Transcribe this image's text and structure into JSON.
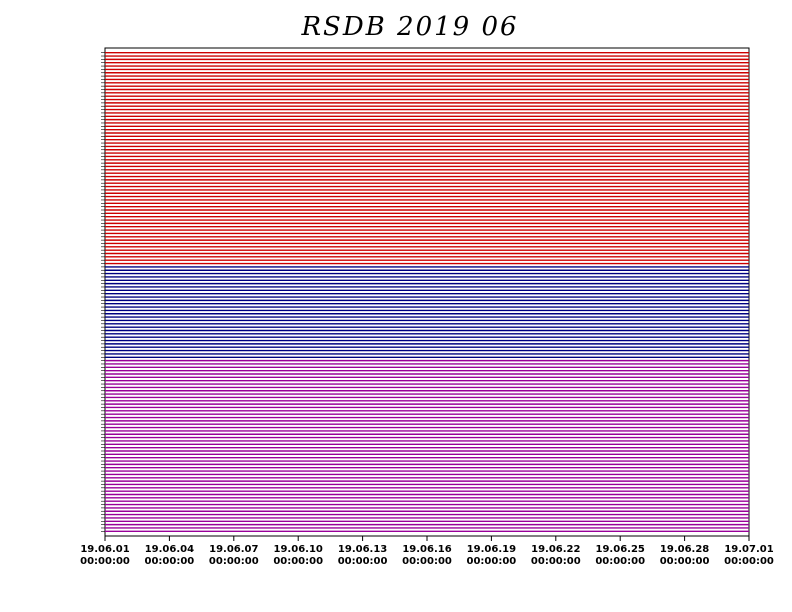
{
  "chart_data": {
    "type": "timeline",
    "title": "RSDB 2019 06",
    "groups": [
      {
        "color": "#cc0000",
        "rows": 64
      },
      {
        "color": "#000080",
        "rows": 28
      },
      {
        "color": "#990099",
        "rows": 52
      }
    ],
    "xlim": [
      1,
      31
    ],
    "xticks": [
      {
        "value": 1,
        "label": "19.06.01",
        "time": "00:00:00"
      },
      {
        "value": 4,
        "label": "19.06.04",
        "time": "00:00:00"
      },
      {
        "value": 7,
        "label": "19.06.07",
        "time": "00:00:00"
      },
      {
        "value": 10,
        "label": "19.06.10",
        "time": "00:00:00"
      },
      {
        "value": 13,
        "label": "19.06.13",
        "time": "00:00:00"
      },
      {
        "value": 16,
        "label": "19.06.16",
        "time": "00:00:00"
      },
      {
        "value": 19,
        "label": "19.06.19",
        "time": "00:00:00"
      },
      {
        "value": 22,
        "label": "19.06.22",
        "time": "00:00:00"
      },
      {
        "value": 25,
        "label": "19.06.25",
        "time": "00:00:00"
      },
      {
        "value": 28,
        "label": "19.06.28",
        "time": "00:00:00"
      },
      {
        "value": 31,
        "label": "19.07.01",
        "time": "00:00:00"
      }
    ]
  }
}
